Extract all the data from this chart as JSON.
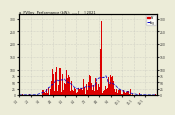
{
  "title": "a  PV/Inv  Performance (kW):  ---- [    ] 2021",
  "ylim": [
    0,
    320
  ],
  "bar_color": "#dd0000",
  "avg_color": "#0000cc",
  "background_color": "#ececd8",
  "grid_color": "#aaaaaa",
  "n_bars": 365,
  "avg_line_style": "--",
  "avg_value": 18
}
